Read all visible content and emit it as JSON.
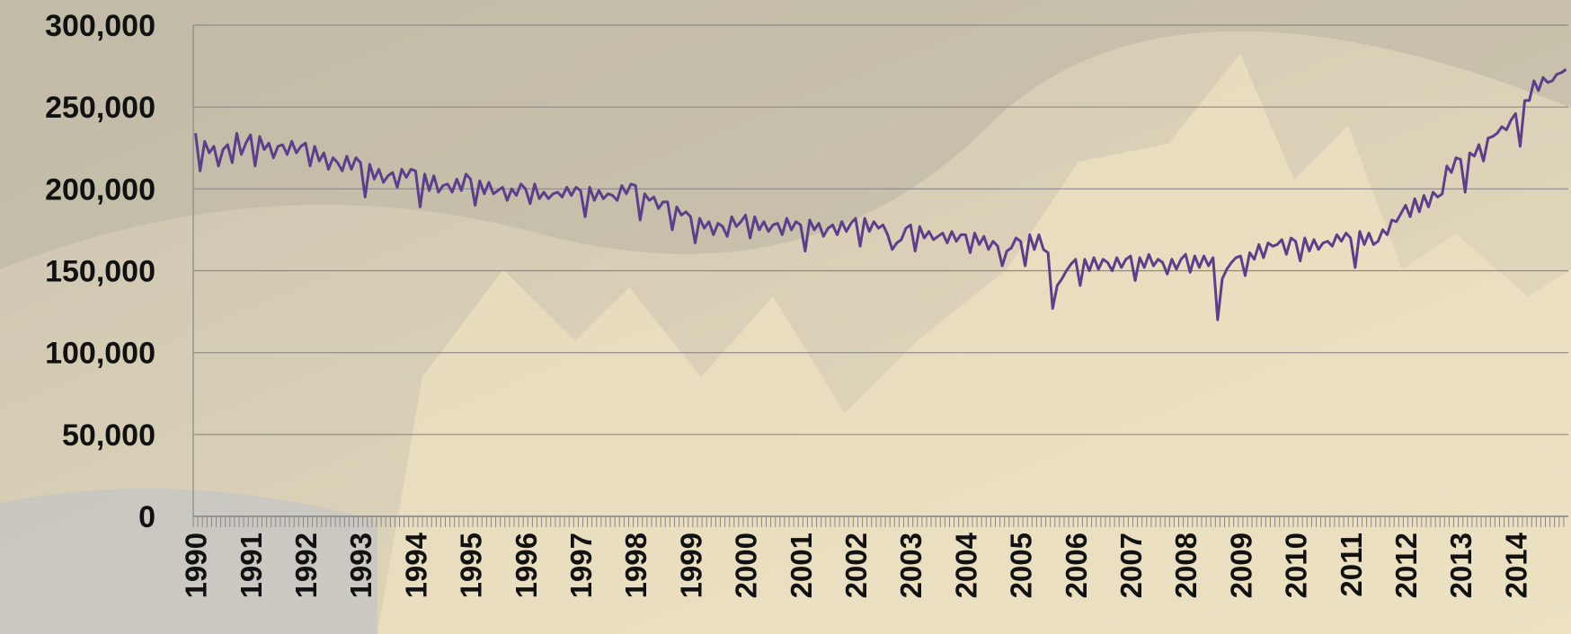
{
  "chart_data": {
    "type": "line",
    "categories": [
      "1990",
      null,
      null,
      null,
      null,
      null,
      null,
      null,
      null,
      null,
      null,
      null,
      "1991",
      null,
      null,
      null,
      null,
      null,
      null,
      null,
      null,
      null,
      null,
      null,
      "1992",
      null,
      null,
      null,
      null,
      null,
      null,
      null,
      null,
      null,
      null,
      null,
      "1993",
      null,
      null,
      null,
      null,
      null,
      null,
      null,
      null,
      null,
      null,
      null,
      "1994",
      null,
      null,
      null,
      null,
      null,
      null,
      null,
      null,
      null,
      null,
      null,
      "1995",
      null,
      null,
      null,
      null,
      null,
      null,
      null,
      null,
      null,
      null,
      null,
      "1996",
      null,
      null,
      null,
      null,
      null,
      null,
      null,
      null,
      null,
      null,
      null,
      "1997",
      null,
      null,
      null,
      null,
      null,
      null,
      null,
      null,
      null,
      null,
      null,
      "1998",
      null,
      null,
      null,
      null,
      null,
      null,
      null,
      null,
      null,
      null,
      null,
      "1999",
      null,
      null,
      null,
      null,
      null,
      null,
      null,
      null,
      null,
      null,
      null,
      "2000",
      null,
      null,
      null,
      null,
      null,
      null,
      null,
      null,
      null,
      null,
      null,
      "2001",
      null,
      null,
      null,
      null,
      null,
      null,
      null,
      null,
      null,
      null,
      null,
      "2002",
      null,
      null,
      null,
      null,
      null,
      null,
      null,
      null,
      null,
      null,
      null,
      "2003",
      null,
      null,
      null,
      null,
      null,
      null,
      null,
      null,
      null,
      null,
      null,
      "2004",
      null,
      null,
      null,
      null,
      null,
      null,
      null,
      null,
      null,
      null,
      null,
      "2005",
      null,
      null,
      null,
      null,
      null,
      null,
      null,
      null,
      null,
      null,
      null,
      "2006",
      null,
      null,
      null,
      null,
      null,
      null,
      null,
      null,
      null,
      null,
      null,
      "2007",
      null,
      null,
      null,
      null,
      null,
      null,
      null,
      null,
      null,
      null,
      null,
      "2008",
      null,
      null,
      null,
      null,
      null,
      null,
      null,
      null,
      null,
      null,
      null,
      "2009",
      null,
      null,
      null,
      null,
      null,
      null,
      null,
      null,
      null,
      null,
      null,
      "2010",
      null,
      null,
      null,
      null,
      null,
      null,
      null,
      null,
      null,
      null,
      null,
      "2011",
      null,
      null,
      null,
      null,
      null,
      null,
      null,
      null,
      null,
      null,
      null,
      "2012",
      null,
      null,
      null,
      null,
      null,
      null,
      null,
      null,
      null,
      null,
      null,
      "2013",
      null,
      null,
      null,
      null,
      null,
      null,
      null,
      null,
      null,
      null,
      null,
      "2014",
      null,
      null,
      null,
      null,
      null,
      null,
      null,
      null,
      null,
      null,
      null
    ],
    "series": [
      {
        "color": "#5b3f8c",
        "values": [
          234000,
          211000,
          229000,
          222000,
          226000,
          214000,
          224000,
          227000,
          216000,
          234000,
          221000,
          228000,
          233000,
          214000,
          232000,
          224000,
          228000,
          219000,
          226000,
          227000,
          221000,
          229000,
          222000,
          226000,
          228000,
          214000,
          226000,
          217000,
          222000,
          212000,
          219000,
          216000,
          211000,
          220000,
          212000,
          219000,
          216000,
          195000,
          215000,
          206000,
          212000,
          204000,
          208000,
          210000,
          201000,
          212000,
          207000,
          212000,
          211000,
          189000,
          209000,
          199000,
          208000,
          198000,
          202000,
          203000,
          198000,
          206000,
          199000,
          209000,
          206000,
          190000,
          205000,
          197000,
          204000,
          197000,
          199000,
          201000,
          193000,
          200000,
          196000,
          203000,
          200000,
          191000,
          203000,
          194000,
          198000,
          194000,
          197000,
          198000,
          195000,
          201000,
          196000,
          201000,
          199000,
          183000,
          201000,
          193000,
          199000,
          194000,
          197000,
          196000,
          193000,
          202000,
          197000,
          203000,
          202000,
          181000,
          197000,
          193000,
          195000,
          188000,
          192000,
          192000,
          175000,
          189000,
          184000,
          186000,
          183000,
          167000,
          182000,
          176000,
          180000,
          172000,
          179000,
          177000,
          171000,
          183000,
          177000,
          180000,
          184000,
          170000,
          183000,
          175000,
          180000,
          174000,
          178000,
          179000,
          172000,
          182000,
          175000,
          180000,
          178000,
          162000,
          181000,
          175000,
          179000,
          171000,
          176000,
          178000,
          172000,
          180000,
          174000,
          179000,
          182000,
          165000,
          182000,
          174000,
          180000,
          176000,
          178000,
          172000,
          163000,
          167000,
          169000,
          176000,
          178000,
          162000,
          177000,
          170000,
          174000,
          169000,
          171000,
          173000,
          167000,
          174000,
          168000,
          172000,
          172000,
          161000,
          173000,
          166000,
          171000,
          163000,
          168000,
          165000,
          153000,
          162000,
          164000,
          170000,
          168000,
          153000,
          172000,
          163000,
          172000,
          163000,
          161000,
          127000,
          141000,
          145000,
          150000,
          154000,
          157000,
          141000,
          157000,
          150000,
          158000,
          151000,
          157000,
          155000,
          150000,
          158000,
          152000,
          157000,
          159000,
          144000,
          158000,
          152000,
          160000,
          153000,
          157000,
          155000,
          148000,
          157000,
          151000,
          157000,
          160000,
          149000,
          159000,
          152000,
          159000,
          153000,
          158000,
          120000,
          145000,
          151000,
          155000,
          158000,
          159000,
          147000,
          161000,
          157000,
          166000,
          158000,
          167000,
          165000,
          166000,
          169000,
          160000,
          170000,
          168000,
          156000,
          170000,
          162000,
          169000,
          163000,
          167000,
          168000,
          165000,
          172000,
          168000,
          173000,
          170000,
          152000,
          174000,
          166000,
          173000,
          166000,
          168000,
          175000,
          172000,
          181000,
          180000,
          185000,
          190000,
          183000,
          194000,
          186000,
          196000,
          189000,
          198000,
          195000,
          197000,
          214000,
          210000,
          219000,
          218000,
          198000,
          222000,
          220000,
          227000,
          217000,
          231000,
          232000,
          234000,
          238000,
          236000,
          242000,
          246000,
          226000,
          254000,
          254000,
          266000,
          260000,
          268000,
          265000,
          266000,
          270000,
          271000,
          273000
        ]
      }
    ],
    "ylim": [
      0,
      300000
    ],
    "yticks": [
      {
        "value": 0,
        "label": "0"
      },
      {
        "value": 50000,
        "label": "50,000"
      },
      {
        "value": 100000,
        "label": "100,000"
      },
      {
        "value": 150000,
        "label": "150,000"
      },
      {
        "value": 200000,
        "label": "200,000"
      },
      {
        "value": 250000,
        "label": "250,000"
      },
      {
        "value": 300000,
        "label": "300,000"
      }
    ],
    "grid": true
  }
}
